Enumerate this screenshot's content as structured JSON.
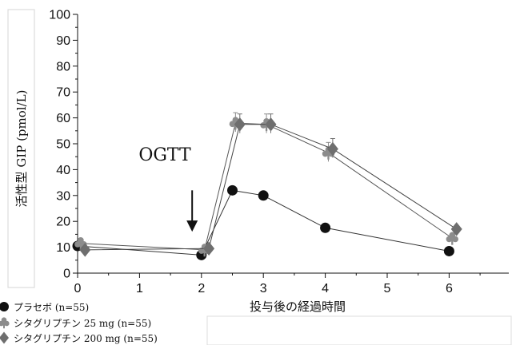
{
  "chart_data": {
    "type": "line",
    "xlabel": "投与後の経過時間",
    "ylabel": "活性型 GIP (pmol/L)",
    "xlim": [
      0,
      7
    ],
    "ylim": [
      0,
      100
    ],
    "x_ticks": [
      "0",
      "1",
      "2",
      "3",
      "4",
      "5",
      "6"
    ],
    "y_ticks": [
      "0",
      "10",
      "20",
      "30",
      "40",
      "50",
      "60",
      "70",
      "80",
      "90",
      "100"
    ],
    "annotation": {
      "text": "OGTT",
      "x": 1.85,
      "arrow_from_y": 32,
      "arrow_to_y": 16
    },
    "legend_position": "bottom-left",
    "series": [
      {
        "name": "プラセボ (n=55)",
        "marker": "circle",
        "color": "#111111",
        "line_color": "#333333",
        "points": [
          [
            0,
            10.5
          ],
          [
            2,
            7
          ],
          [
            2.5,
            32
          ],
          [
            3,
            30
          ],
          [
            4,
            17.5
          ],
          [
            6,
            8.5
          ]
        ]
      },
      {
        "name": "シタグリプチン 25 mg (n=55)",
        "marker": "club",
        "color": "#8c8c8c",
        "line_color": "#555555",
        "points": [
          [
            0.05,
            11.5
          ],
          [
            2.05,
            9
          ],
          [
            2.55,
            58
          ],
          [
            3.05,
            57.5
          ],
          [
            4.05,
            46.5
          ],
          [
            6.05,
            13.5
          ]
        ]
      },
      {
        "name": "シタグリプチン 200 mg (n=55)",
        "marker": "diamond",
        "color": "#6e6e6e",
        "line_color": "#444444",
        "points": [
          [
            0.12,
            9
          ],
          [
            2.12,
            9.5
          ],
          [
            2.62,
            57.5
          ],
          [
            3.12,
            57.5
          ],
          [
            4.12,
            48
          ],
          [
            6.12,
            17
          ]
        ]
      }
    ]
  }
}
